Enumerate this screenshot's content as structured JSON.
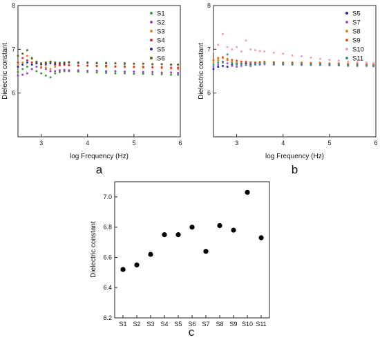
{
  "chart_data": [
    {
      "type": "scatter",
      "panel_label": "a",
      "xlabel": "log Frequency (Hz)",
      "ylabel": "Dielectric constant",
      "xlim": [
        2.5,
        6.0
      ],
      "ylim": [
        5.0,
        8.0
      ],
      "xticks": [
        "3",
        "4",
        "5",
        "6"
      ],
      "yticks": [
        "6",
        "7",
        "8"
      ],
      "legend_position": "top-right",
      "x": [
        2.5,
        2.6,
        2.7,
        2.8,
        2.9,
        3.0,
        3.1,
        3.2,
        3.3,
        3.4,
        3.5,
        3.6,
        3.8,
        4.0,
        4.2,
        4.4,
        4.6,
        4.8,
        5.0,
        5.2,
        5.4,
        5.6,
        5.8,
        5.95
      ],
      "series": [
        {
          "name": "S1",
          "color": "#3c9a3c",
          "values": [
            6.48,
            6.55,
            6.6,
            6.55,
            6.5,
            6.45,
            6.4,
            6.36,
            6.45,
            6.48,
            6.5,
            6.5,
            6.49,
            6.48,
            6.47,
            6.46,
            6.45,
            6.45,
            6.44,
            6.44,
            6.43,
            6.43,
            6.42,
            6.42
          ]
        },
        {
          "name": "S2",
          "color": "#a23ac9",
          "values": [
            6.4,
            6.42,
            6.45,
            6.55,
            6.6,
            6.58,
            6.55,
            6.5,
            6.5,
            6.52,
            6.53,
            6.52,
            6.52,
            6.51,
            6.51,
            6.5,
            6.5,
            6.49,
            6.49,
            6.48,
            6.48,
            6.47,
            6.47,
            6.46
          ]
        },
        {
          "name": "S3",
          "color": "#e08a1e",
          "values": [
            6.65,
            6.7,
            6.85,
            6.78,
            6.7,
            6.6,
            6.58,
            6.55,
            6.6,
            6.63,
            6.64,
            6.63,
            6.62,
            6.62,
            6.61,
            6.6,
            6.6,
            6.59,
            6.59,
            6.58,
            6.58,
            6.57,
            6.56,
            6.55
          ]
        },
        {
          "name": "S4",
          "color": "#e03030",
          "values": [
            6.7,
            6.8,
            6.75,
            6.7,
            6.68,
            6.66,
            6.65,
            6.68,
            6.65,
            6.64,
            6.65,
            6.64,
            6.63,
            6.63,
            6.62,
            6.62,
            6.61,
            6.61,
            6.6,
            6.6,
            6.59,
            6.59,
            6.58,
            6.58
          ]
        },
        {
          "name": "S5",
          "color": "#1f2aa8",
          "values": [
            6.6,
            6.65,
            6.7,
            6.65,
            6.68,
            6.66,
            6.68,
            6.7,
            6.67,
            6.68,
            6.68,
            6.7,
            6.69,
            6.69,
            6.68,
            6.68,
            6.68,
            6.67,
            6.67,
            6.67,
            6.66,
            6.66,
            6.65,
            6.65
          ]
        },
        {
          "name": "S6",
          "color": "#5a6a18",
          "values": [
            6.85,
            6.9,
            6.98,
            6.8,
            6.72,
            6.68,
            6.7,
            6.72,
            6.7,
            6.69,
            6.7,
            6.71,
            6.7,
            6.7,
            6.69,
            6.69,
            6.68,
            6.68,
            6.67,
            6.67,
            6.66,
            6.66,
            6.65,
            6.65
          ]
        }
      ]
    },
    {
      "type": "scatter",
      "panel_label": "b",
      "xlabel": "log Frequency (Hz)",
      "ylabel": "Dielectric constant",
      "xlim": [
        2.5,
        6.0
      ],
      "ylim": [
        5.0,
        8.0
      ],
      "xticks": [
        "3",
        "4",
        "5",
        "6"
      ],
      "yticks": [
        "6",
        "7",
        "8"
      ],
      "legend_position": "top-right",
      "x": [
        2.5,
        2.6,
        2.7,
        2.8,
        2.9,
        3.0,
        3.1,
        3.2,
        3.3,
        3.4,
        3.5,
        3.6,
        3.8,
        4.0,
        4.2,
        4.4,
        4.6,
        4.8,
        5.0,
        5.2,
        5.4,
        5.6,
        5.8,
        5.95
      ],
      "series": [
        {
          "name": "S5",
          "color": "#1f2aa8",
          "values": [
            6.55,
            6.6,
            6.62,
            6.6,
            6.65,
            6.68,
            6.67,
            6.68,
            6.66,
            6.68,
            6.67,
            6.68,
            6.67,
            6.67,
            6.66,
            6.66,
            6.66,
            6.65,
            6.65,
            6.65,
            6.64,
            6.64,
            6.63,
            6.63
          ]
        },
        {
          "name": "S7",
          "color": "#b050d0",
          "values": [
            6.6,
            6.65,
            6.7,
            6.68,
            6.62,
            6.6,
            6.62,
            6.65,
            6.64,
            6.65,
            6.65,
            6.66,
            6.65,
            6.65,
            6.65,
            6.64,
            6.64,
            6.64,
            6.63,
            6.63,
            6.62,
            6.62,
            6.62,
            6.61
          ]
        },
        {
          "name": "S8",
          "color": "#e08a1e",
          "values": [
            6.7,
            6.75,
            6.8,
            6.75,
            6.72,
            6.7,
            6.72,
            6.72,
            6.7,
            6.7,
            6.71,
            6.72,
            6.71,
            6.7,
            6.7,
            6.7,
            6.69,
            6.69,
            6.68,
            6.68,
            6.67,
            6.67,
            6.66,
            6.66
          ]
        },
        {
          "name": "S9",
          "color": "#e05a1e",
          "values": [
            6.75,
            6.8,
            6.82,
            6.78,
            6.76,
            6.74,
            6.72,
            6.72,
            6.7,
            6.7,
            6.7,
            6.71,
            6.7,
            6.69,
            6.69,
            6.68,
            6.68,
            6.68,
            6.67,
            6.67,
            6.66,
            6.66,
            6.65,
            6.65
          ]
        },
        {
          "name": "S10",
          "color": "#f4a0b0",
          "values": [
            6.95,
            7.1,
            7.35,
            7.05,
            7.0,
            7.05,
            6.95,
            7.2,
            7.0,
            6.98,
            6.96,
            6.95,
            6.92,
            6.9,
            6.86,
            6.84,
            6.81,
            6.78,
            6.76,
            6.74,
            6.72,
            6.71,
            6.7,
            6.69
          ]
        },
        {
          "name": "S11",
          "color": "#2a9a8a",
          "values": [
            6.65,
            6.7,
            6.72,
            6.88,
            6.68,
            6.65,
            6.66,
            6.64,
            6.62,
            6.66,
            6.67,
            6.68,
            6.67,
            6.67,
            6.66,
            6.66,
            6.65,
            6.65,
            6.65,
            6.64,
            6.64,
            6.63,
            6.63,
            6.62
          ]
        }
      ]
    },
    {
      "type": "scatter",
      "panel_label": "c",
      "xlabel": "",
      "ylabel": "Dielectric constant",
      "ylim": [
        6.2,
        7.1
      ],
      "yticks": [
        "6.2",
        "6.4",
        "6.6",
        "6.8",
        "7.0"
      ],
      "categories": [
        "S1",
        "S2",
        "S3",
        "S4",
        "S5",
        "S6",
        "S7",
        "S8",
        "S9",
        "S10",
        "S11"
      ],
      "values": [
        6.52,
        6.55,
        6.62,
        6.75,
        6.75,
        6.8,
        6.64,
        6.81,
        6.78,
        7.03,
        6.73
      ],
      "color": "#000000"
    }
  ]
}
